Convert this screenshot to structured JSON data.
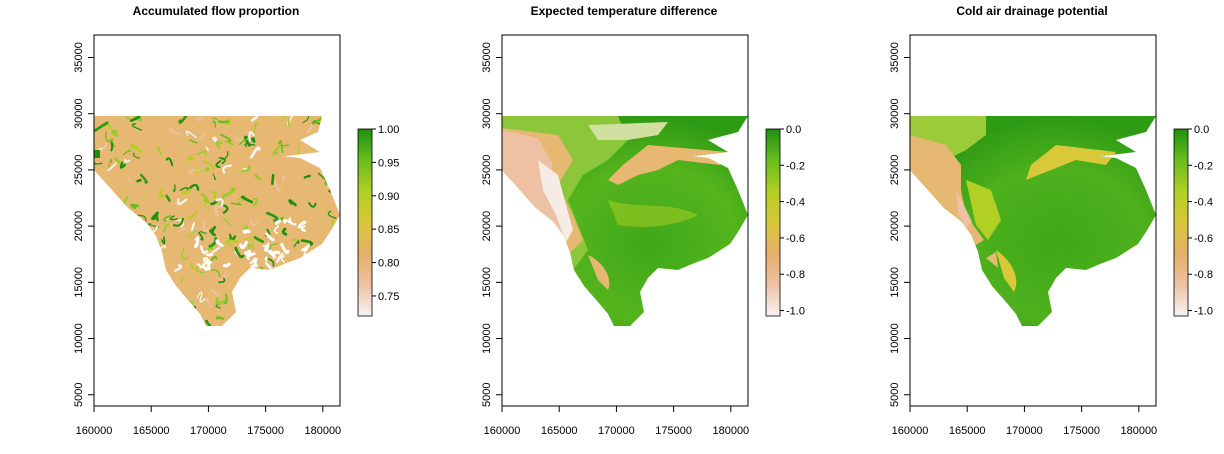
{
  "chart_data": [
    {
      "type": "heatmap",
      "title": "Accumulated flow proportion",
      "xlabel": "",
      "ylabel": "",
      "xlim": [
        160000,
        181500
      ],
      "ylim": [
        4000,
        37000
      ],
      "x_ticks": [
        160000,
        165000,
        170000,
        175000,
        180000
      ],
      "y_ticks": [
        5000,
        10000,
        15000,
        20000,
        25000,
        30000,
        35000
      ],
      "legend": {
        "placement": "right",
        "range": [
          0.72,
          1.0
        ],
        "ticks": [
          1.0,
          0.95,
          0.9,
          0.85,
          0.8,
          0.75
        ],
        "tick_labels": [
          "1.00",
          "0.95",
          "0.90",
          "0.85",
          "0.80",
          "0.75"
        ],
        "colors": [
          "#f6f3f3",
          "#eec1a4",
          "#e4b06a",
          "#d8c83a",
          "#b2cf24",
          "#69bd1c",
          "#1f8f10"
        ]
      },
      "pattern": "channels"
    },
    {
      "type": "heatmap",
      "title": "Expected temperature difference",
      "xlabel": "",
      "ylabel": "",
      "xlim": [
        160000,
        181500
      ],
      "ylim": [
        4000,
        37000
      ],
      "x_ticks": [
        160000,
        165000,
        170000,
        175000,
        180000
      ],
      "y_ticks": [
        5000,
        10000,
        15000,
        20000,
        25000,
        30000,
        35000
      ],
      "legend": {
        "placement": "right",
        "range": [
          -1.03,
          0.0
        ],
        "ticks": [
          0.0,
          -0.2,
          -0.4,
          -0.6,
          -0.8,
          -1.0
        ],
        "tick_labels": [
          "0.0",
          "-0.2",
          "-0.4",
          "-0.6",
          "-0.8",
          "-1.0"
        ],
        "colors": [
          "#f6f3f3",
          "#eec1a4",
          "#e4b06a",
          "#d8c83a",
          "#b2cf24",
          "#69bd1c",
          "#1f8f10"
        ]
      },
      "pattern": "smooth"
    },
    {
      "type": "heatmap",
      "title": "Cold air drainage potential",
      "xlabel": "",
      "ylabel": "",
      "xlim": [
        160000,
        181500
      ],
      "ylim": [
        4000,
        37000
      ],
      "x_ticks": [
        160000,
        165000,
        170000,
        175000,
        180000
      ],
      "y_ticks": [
        5000,
        10000,
        15000,
        20000,
        25000,
        30000,
        35000
      ],
      "legend": {
        "placement": "right",
        "range": [
          -1.03,
          0.0
        ],
        "ticks": [
          0.0,
          -0.2,
          -0.4,
          -0.6,
          -0.8,
          -1.0
        ],
        "tick_labels": [
          "0.0",
          "-0.2",
          "-0.4",
          "-0.6",
          "-0.8",
          "-1.0"
        ],
        "colors": [
          "#f6f3f3",
          "#eec1a4",
          "#e4b06a",
          "#d8c83a",
          "#b2cf24",
          "#69bd1c",
          "#1f8f10"
        ]
      },
      "pattern": "smooth-green"
    }
  ]
}
